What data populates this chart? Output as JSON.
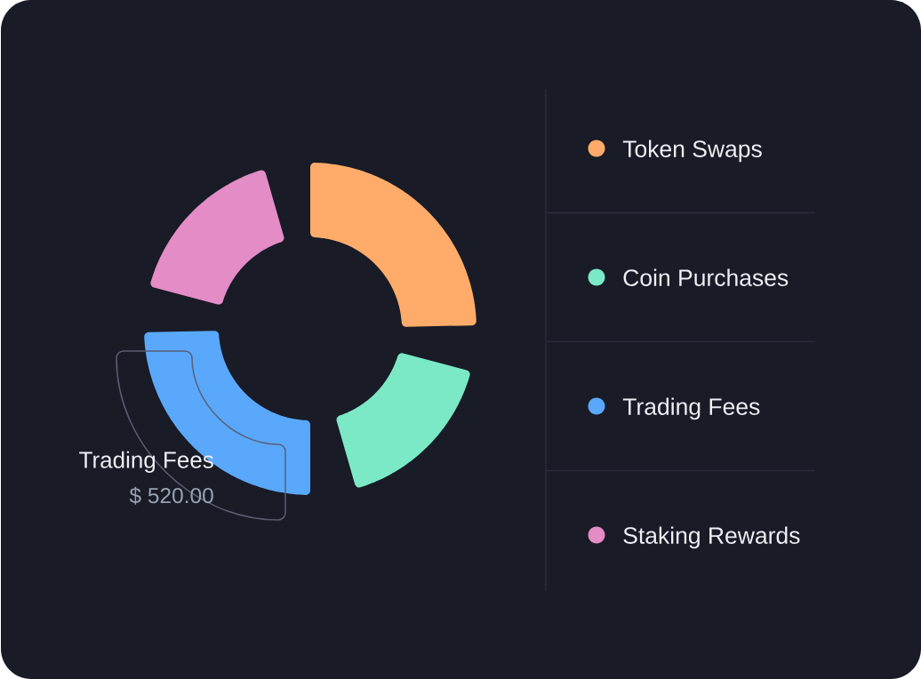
{
  "chart_data": {
    "type": "donut",
    "categories": [
      "Token Swaps",
      "Coin Purchases",
      "Trading Fees",
      "Staking Rewards"
    ],
    "values": [
      30,
      20,
      30,
      20
    ],
    "colors": [
      "#ffac6a",
      "#7be8c6",
      "#5aa8fc",
      "#e38cc6"
    ],
    "legend": "right",
    "annotations": [
      "Trading Fees",
      "$ 520.00"
    ]
  }
}
